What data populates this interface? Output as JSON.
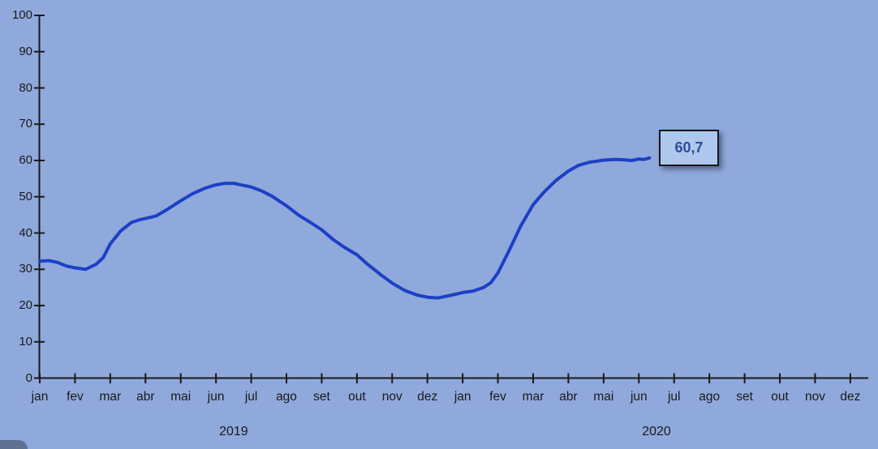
{
  "chart_data": {
    "type": "line",
    "title": "",
    "xlabel": "",
    "ylabel": "",
    "grid": false,
    "legend": "none",
    "x_axis": {
      "month_labels": [
        "jan",
        "fev",
        "mar",
        "abr",
        "mai",
        "jun",
        "jul",
        "ago",
        "set",
        "out",
        "nov",
        "dez",
        "jan",
        "fev",
        "mar",
        "abr",
        "mai",
        "jun",
        "jul",
        "ago",
        "set",
        "out",
        "nov",
        "dez"
      ],
      "year_labels": [
        {
          "label": "2019",
          "center_month": 5.5
        },
        {
          "label": "2020",
          "center_month": 17.5
        }
      ]
    },
    "y_axis": {
      "min": 0,
      "max": 100,
      "step": 10,
      "tick_labels": [
        "0",
        "10",
        "20",
        "30",
        "40",
        "50",
        "60",
        "70",
        "80",
        "90",
        "100"
      ]
    },
    "series": [
      {
        "color": "#1c40c4",
        "points": [
          [
            0.0,
            32.2
          ],
          [
            0.25,
            32.4
          ],
          [
            0.5,
            31.9
          ],
          [
            0.75,
            30.9
          ],
          [
            1.0,
            30.4
          ],
          [
            1.3,
            30.0
          ],
          [
            1.6,
            31.4
          ],
          [
            1.8,
            33.2
          ],
          [
            2.0,
            37.0
          ],
          [
            2.3,
            40.6
          ],
          [
            2.6,
            42.9
          ],
          [
            2.85,
            43.7
          ],
          [
            3.0,
            44.0
          ],
          [
            3.3,
            44.7
          ],
          [
            3.6,
            46.4
          ],
          [
            4.0,
            48.9
          ],
          [
            4.35,
            50.9
          ],
          [
            4.7,
            52.4
          ],
          [
            5.0,
            53.3
          ],
          [
            5.25,
            53.7
          ],
          [
            5.5,
            53.7
          ],
          [
            5.75,
            53.2
          ],
          [
            6.0,
            52.7
          ],
          [
            6.3,
            51.6
          ],
          [
            6.6,
            50.1
          ],
          [
            7.0,
            47.5
          ],
          [
            7.35,
            44.9
          ],
          [
            7.7,
            42.8
          ],
          [
            8.0,
            40.9
          ],
          [
            8.3,
            38.4
          ],
          [
            8.65,
            36.0
          ],
          [
            9.0,
            34.0
          ],
          [
            9.3,
            31.4
          ],
          [
            9.65,
            28.7
          ],
          [
            10.0,
            26.2
          ],
          [
            10.35,
            24.2
          ],
          [
            10.7,
            22.9
          ],
          [
            11.0,
            22.3
          ],
          [
            11.3,
            22.1
          ],
          [
            11.65,
            22.8
          ],
          [
            12.0,
            23.6
          ],
          [
            12.3,
            24.0
          ],
          [
            12.6,
            25.0
          ],
          [
            12.8,
            26.3
          ],
          [
            13.0,
            29.0
          ],
          [
            13.3,
            34.8
          ],
          [
            13.65,
            42.0
          ],
          [
            14.0,
            47.8
          ],
          [
            14.3,
            51.2
          ],
          [
            14.65,
            54.5
          ],
          [
            15.0,
            57.1
          ],
          [
            15.3,
            58.7
          ],
          [
            15.6,
            59.5
          ],
          [
            16.0,
            60.1
          ],
          [
            16.3,
            60.3
          ],
          [
            16.55,
            60.2
          ],
          [
            16.8,
            60.0
          ],
          [
            17.0,
            60.4
          ],
          [
            17.15,
            60.3
          ],
          [
            17.3,
            60.7
          ]
        ]
      }
    ],
    "end_label": {
      "text": "60,7",
      "value": 60.7
    },
    "colors": {
      "background": "#8fa9dc",
      "axis": "#1a1a1a",
      "line": "#1c40c4",
      "label_fill": "#aec7ec",
      "label_border": "#15181f",
      "label_text": "#2d4d9d"
    }
  }
}
